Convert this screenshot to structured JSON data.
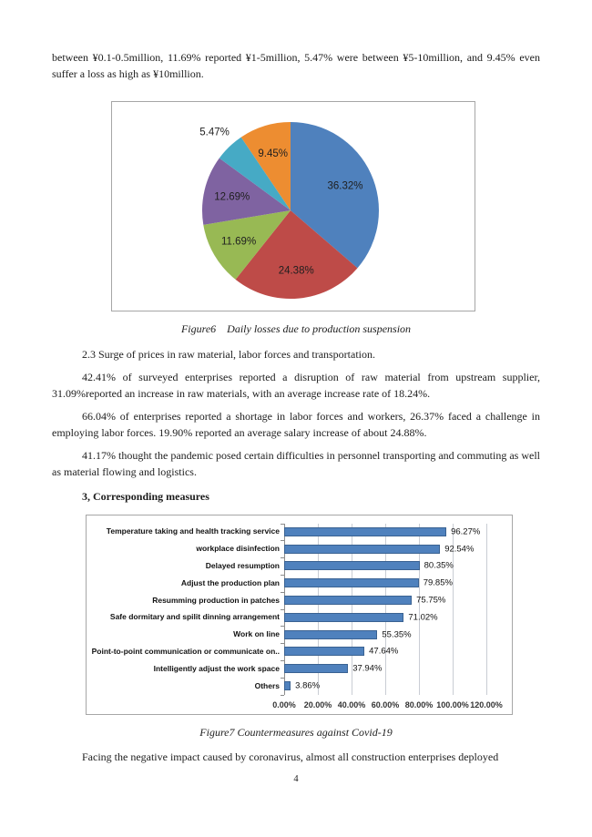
{
  "page": {
    "number": "4"
  },
  "body": {
    "p1": "between ¥0.1-0.5million, 11.69% reported ¥1-5million, 5.47% were between ¥5-10million, and 9.45% even suffer a loss as high as ¥10million.",
    "p2": "2.3 Surge of prices in raw material, labor forces and transportation.",
    "p3": "42.41% of surveyed enterprises reported a disruption of raw material from upstream supplier, 31.09%reported an increase in raw materials, with an average increase rate of 18.24%.",
    "p4": "66.04% of enterprises reported a shortage in labor forces and workers, 26.37% faced a challenge in employing labor forces. 19.90% reported an average salary increase of about 24.88%.",
    "p5": "41.17% thought the pandemic posed certain difficulties in personnel transporting and commuting as well as material flowing and logistics.",
    "heading3": "3, Corresponding measures",
    "p6": "Facing the negative impact caused by coronavirus, almost all construction enterprises deployed"
  },
  "figures": {
    "fig6_caption": "Figure6    Daily losses due to production suspension",
    "fig7_caption": "Figure7 Countermeasures against Covid-19"
  },
  "chart_data": [
    {
      "type": "pie",
      "title": "Figure6 Daily losses due to production suspension",
      "direction": "clockwise",
      "start_angle_deg": 0,
      "legend": "none",
      "slices": [
        {
          "label": "36.32%",
          "value": 36.32,
          "color": "#4F81BD",
          "label_position": "inside"
        },
        {
          "label": "24.38%",
          "value": 24.38,
          "color": "#BE4B48",
          "label_position": "inside"
        },
        {
          "label": "11.69%",
          "value": 11.69,
          "color": "#98B954",
          "label_position": "inside"
        },
        {
          "label": "12.69%",
          "value": 12.69,
          "color": "#7F63A1",
          "label_position": "inside"
        },
        {
          "label": "5.47%",
          "value": 5.47,
          "color": "#46AAC5",
          "label_position": "outside"
        },
        {
          "label": "9.45%",
          "value": 9.45,
          "color": "#ED8D31",
          "label_position": "inside"
        }
      ]
    },
    {
      "type": "bar",
      "orientation": "horizontal",
      "title": "Figure7 Countermeasures against Covid-19",
      "categories": [
        "Temperature taking and health tracking service",
        "workplace disinfection",
        "Delayed resumption",
        "Adjust the production plan",
        "Resumming production in patches",
        "Safe dormitary and spilit dinning arrangement",
        "Work on line",
        "Point-to-point communication or communicate on..",
        "Intelligently adjust the work space",
        "Others"
      ],
      "values": [
        96.27,
        92.54,
        80.35,
        79.85,
        75.75,
        71.02,
        55.35,
        47.64,
        37.94,
        3.86
      ],
      "value_labels": [
        "96.27%",
        "92.54%",
        "80.35%",
        "79.85%",
        "75.75%",
        "71.02%",
        "55.35%",
        "47.64%",
        "37.94%",
        "3.86%"
      ],
      "xlim": [
        0,
        120
      ],
      "x_tick_step": 20,
      "x_tick_labels": [
        "0.00%",
        "20.00%",
        "40.00%",
        "60.00%",
        "80.00%",
        "100.00%",
        "120.00%"
      ],
      "bar_color": "#4F81BD",
      "grid": true,
      "legend": "none"
    }
  ]
}
